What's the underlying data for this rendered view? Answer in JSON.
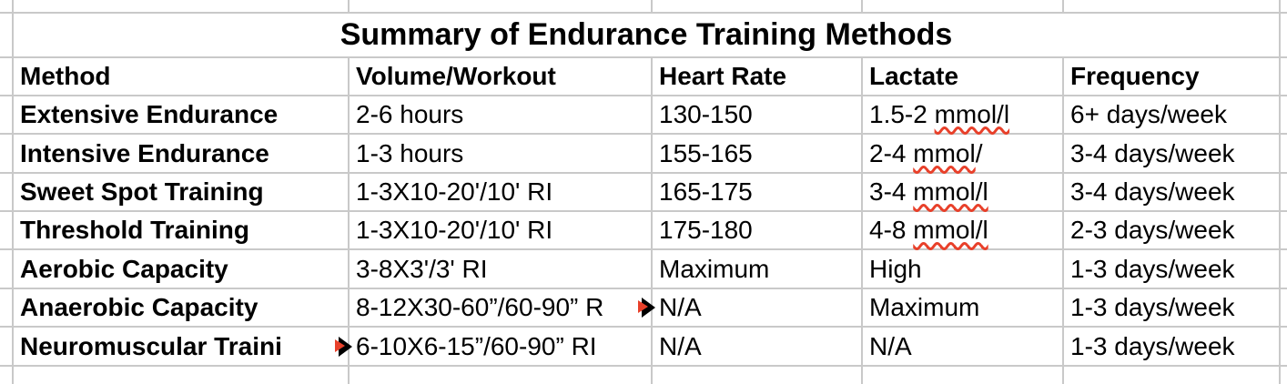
{
  "sheet": {
    "title": "Summary of Endurance Training Methods",
    "columns": [
      "Method",
      "Volume/Workout",
      "Heart Rate",
      "Lactate",
      "Frequency"
    ],
    "rows": [
      {
        "cells": [
          {
            "text": "Extensive Endurance"
          },
          {
            "text": "2-6 hours"
          },
          {
            "text": "130-150"
          },
          {
            "pre": "1.5-2 ",
            "misspelled": "mmol/l"
          },
          {
            "text": "6+ days/week"
          }
        ]
      },
      {
        "cells": [
          {
            "text": "Intensive Endurance"
          },
          {
            "text": "1-3 hours"
          },
          {
            "text": "155-165"
          },
          {
            "pre": "2-4 ",
            "misspelled": "mmol",
            "post": "/"
          },
          {
            "text": "3-4 days/week"
          }
        ]
      },
      {
        "cells": [
          {
            "text": "Sweet Spot Training"
          },
          {
            "text": "1-3X10-20'/10' RI"
          },
          {
            "text": "165-175"
          },
          {
            "pre": "3-4 ",
            "misspelled": "mmol/l"
          },
          {
            "text": "3-4 days/week"
          }
        ]
      },
      {
        "cells": [
          {
            "text": "Threshold Training"
          },
          {
            "text": "1-3X10-20'/10' RI"
          },
          {
            "text": "175-180"
          },
          {
            "pre": "4-8 ",
            "misspelled": "mmol/l"
          },
          {
            "text": "2-3 days/week"
          }
        ]
      },
      {
        "cells": [
          {
            "text": "Aerobic Capacity"
          },
          {
            "text": "3-8X3'/3' RI"
          },
          {
            "text": "Maximum"
          },
          {
            "text": "High"
          },
          {
            "text": "1-3 days/week"
          }
        ]
      },
      {
        "cells": [
          {
            "text": "Anaerobic Capacity"
          },
          {
            "text": "8-12X30-60”/60-90” R",
            "clipped": true
          },
          {
            "text": "N/A"
          },
          {
            "text": "Maximum"
          },
          {
            "text": "1-3 days/week"
          }
        ]
      },
      {
        "cells": [
          {
            "text": "Neuromuscular Traini",
            "clipped": true
          },
          {
            "text": "6-10X6-15”/60-90” RI"
          },
          {
            "text": "N/A"
          },
          {
            "text": "N/A"
          },
          {
            "text": "1-3 days/week"
          }
        ]
      }
    ],
    "colors": {
      "background": "#ffffff",
      "text": "#000000",
      "gridline": "#c9c9c9",
      "spellcheck_underline": "#e8402a",
      "clip_arrow_black": "#000000",
      "clip_arrow_red": "#e8402a"
    }
  }
}
